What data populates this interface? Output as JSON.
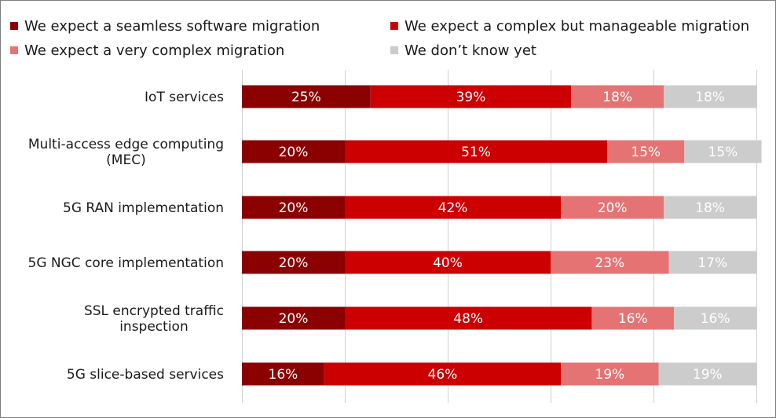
{
  "chart_data": {
    "type": "bar",
    "orientation": "horizontal",
    "stacked": true,
    "percent_stacked": true,
    "title": "",
    "xlabel": "",
    "ylabel": "",
    "xlim": [
      0,
      100
    ],
    "grid": "vertical",
    "legend_position": "top",
    "categories": [
      [
        "IoT services"
      ],
      [
        "Multi-access edge computing",
        "(MEC)"
      ],
      [
        "5G RAN implementation"
      ],
      [
        "5G NGC core implementation"
      ],
      [
        "SSL encrypted traffic",
        "inspection"
      ],
      [
        "5G slice-based services"
      ]
    ],
    "series": [
      {
        "name": "We expect a seamless software migration",
        "color": "#8b0000",
        "values": [
          25,
          20,
          20,
          20,
          20,
          16
        ]
      },
      {
        "name": "We expect a complex but manageable migration",
        "color": "#cc0000",
        "values": [
          39,
          51,
          42,
          40,
          48,
          46
        ]
      },
      {
        "name": "We expect a very complex migration",
        "color": "#e57373",
        "values": [
          18,
          15,
          20,
          23,
          16,
          19
        ]
      },
      {
        "name": "We don’t know yet",
        "color": "#cccccc",
        "values": [
          18,
          15,
          18,
          17,
          16,
          19
        ]
      }
    ]
  }
}
